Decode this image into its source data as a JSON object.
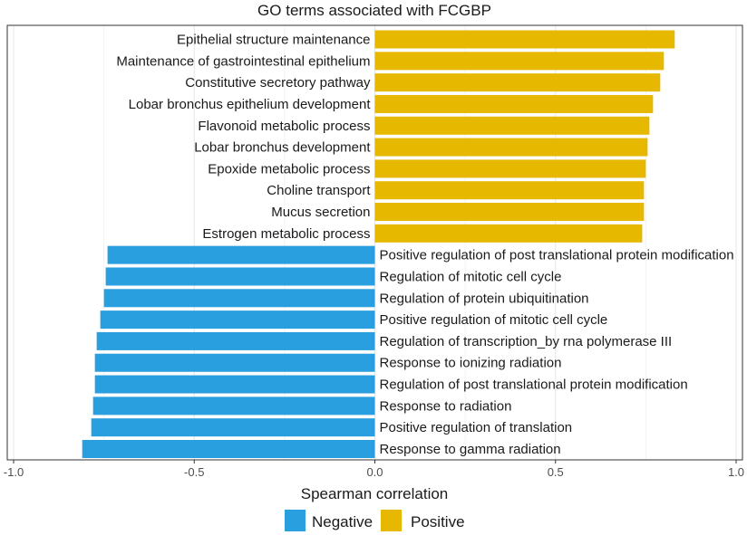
{
  "chart_data": {
    "type": "bar",
    "orientation": "horizontal",
    "title": "GO terms associated with FCGBP",
    "xlabel": "Spearman correlation",
    "ylabel": "",
    "xlim": [
      -1.0,
      1.0
    ],
    "xticks": [
      -1.0,
      -0.5,
      0.0,
      0.5,
      1.0
    ],
    "xtick_labels": [
      "-1.0",
      "-0.5",
      "0.0",
      "0.5",
      "1.0"
    ],
    "grid": true,
    "legend": {
      "placement": "bottom",
      "entries": [
        {
          "name": "Negative",
          "color": "#2A9FDF"
        },
        {
          "name": "Positive",
          "color": "#E6B800"
        }
      ]
    },
    "bars": [
      {
        "label": "Epithelial structure maintenance",
        "value": 0.83,
        "group": "Positive"
      },
      {
        "label": "Maintenance of gastrointestinal epithelium",
        "value": 0.8,
        "group": "Positive"
      },
      {
        "label": "Constitutive secretory pathway",
        "value": 0.79,
        "group": "Positive"
      },
      {
        "label": "Lobar bronchus epithelium development",
        "value": 0.77,
        "group": "Positive"
      },
      {
        "label": "Flavonoid metabolic process",
        "value": 0.76,
        "group": "Positive"
      },
      {
        "label": "Lobar bronchus development",
        "value": 0.755,
        "group": "Positive"
      },
      {
        "label": "Epoxide metabolic process",
        "value": 0.75,
        "group": "Positive"
      },
      {
        "label": "Choline transport",
        "value": 0.745,
        "group": "Positive"
      },
      {
        "label": "Mucus secretion",
        "value": 0.745,
        "group": "Positive"
      },
      {
        "label": "Estrogen metabolic process",
        "value": 0.74,
        "group": "Positive"
      },
      {
        "label": "Positive regulation of post translational protein modification",
        "value": -0.74,
        "group": "Negative"
      },
      {
        "label": "Regulation of mitotic cell cycle",
        "value": -0.745,
        "group": "Negative"
      },
      {
        "label": "Regulation of protein ubiquitination",
        "value": -0.75,
        "group": "Negative"
      },
      {
        "label": "Positive regulation of mitotic cell cycle",
        "value": -0.76,
        "group": "Negative"
      },
      {
        "label": "Regulation of transcription_by rna polymerase III",
        "value": -0.77,
        "group": "Negative"
      },
      {
        "label": "Response to ionizing radiation",
        "value": -0.775,
        "group": "Negative"
      },
      {
        "label": "Regulation of post translational protein modification",
        "value": -0.775,
        "group": "Negative"
      },
      {
        "label": "Response to radiation",
        "value": -0.78,
        "group": "Negative"
      },
      {
        "label": "Positive regulation of translation",
        "value": -0.785,
        "group": "Negative"
      },
      {
        "label": "Response to gamma radiation",
        "value": -0.81,
        "group": "Negative"
      }
    ]
  }
}
